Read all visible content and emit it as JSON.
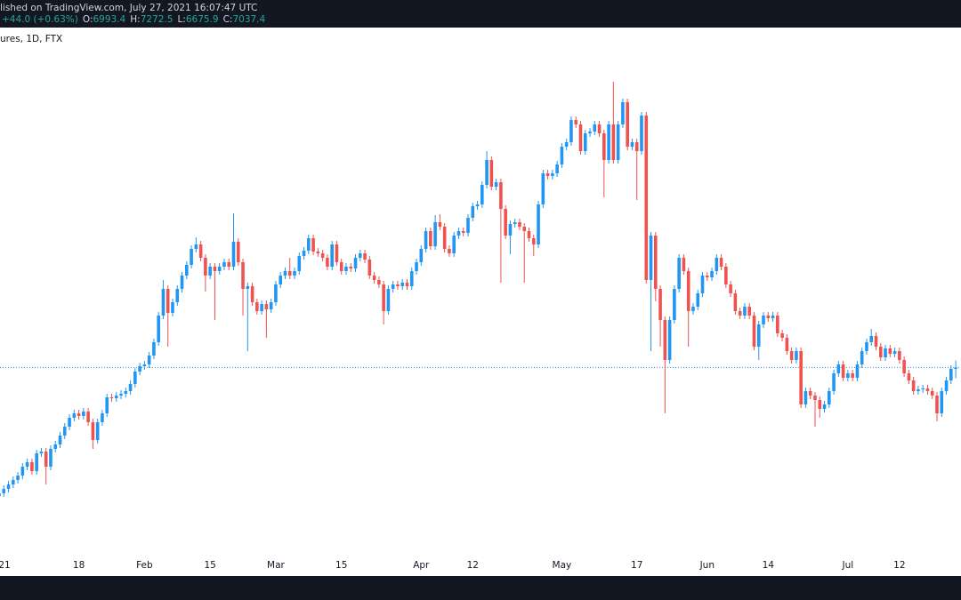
{
  "chart_data": {
    "type": "candlestick",
    "publish_note": "lished on TradingView.com, July 27, 2021 16:07:47 UTC",
    "change_label": "+44.0 (+0.63%)",
    "ohlc_labels": [
      "O:",
      "H:",
      "L:",
      "C:"
    ],
    "symbol": "ures, 1D, FTX",
    "up_color": "#2196f3",
    "down_color": "#ef5350",
    "ylim": [
      0,
      18540
    ],
    "categories": [
      "21",
      null,
      null,
      null,
      null,
      null,
      null,
      null,
      null,
      null,
      null,
      null,
      null,
      null,
      null,
      null,
      null,
      "18",
      null,
      null,
      null,
      null,
      null,
      null,
      null,
      null,
      null,
      null,
      null,
      null,
      null,
      "Feb",
      null,
      null,
      null,
      null,
      null,
      null,
      null,
      null,
      null,
      null,
      null,
      null,
      null,
      "15",
      null,
      null,
      null,
      null,
      null,
      null,
      null,
      null,
      null,
      null,
      null,
      null,
      null,
      "Mar",
      null,
      null,
      null,
      null,
      null,
      null,
      null,
      null,
      null,
      null,
      null,
      null,
      null,
      "15",
      null,
      null,
      null,
      null,
      null,
      null,
      null,
      null,
      null,
      null,
      null,
      null,
      null,
      null,
      null,
      null,
      "Apr",
      null,
      null,
      null,
      null,
      null,
      null,
      null,
      null,
      null,
      null,
      "12",
      null,
      null,
      null,
      null,
      null,
      null,
      null,
      null,
      null,
      null,
      null,
      null,
      null,
      null,
      null,
      null,
      null,
      null,
      "May",
      null,
      null,
      null,
      null,
      null,
      null,
      null,
      null,
      null,
      null,
      null,
      null,
      null,
      null,
      null,
      "17",
      null,
      null,
      null,
      null,
      null,
      null,
      null,
      null,
      null,
      null,
      null,
      null,
      null,
      null,
      "Jun",
      null,
      null,
      null,
      null,
      null,
      null,
      null,
      null,
      null,
      null,
      null,
      null,
      "14",
      null,
      null,
      null,
      null,
      null,
      null,
      null,
      null,
      null,
      null,
      null,
      null,
      null,
      null,
      null,
      null,
      "Jul",
      null,
      null,
      null,
      null,
      null,
      null,
      null,
      null,
      null,
      null,
      "12",
      null,
      null,
      null,
      null,
      null,
      null,
      null,
      null,
      null,
      null,
      null,
      null
    ],
    "open": [
      2700,
      2790,
      2940,
      3090,
      3240,
      3390,
      3690,
      3840,
      3540,
      4140,
      4200,
      3690,
      4290,
      4440,
      4740,
      5040,
      5340,
      5490,
      5400,
      5550,
      5190,
      4590,
      5190,
      5490,
      6030,
      6000,
      6090,
      6150,
      6240,
      6480,
      6900,
      7080,
      7140,
      7440,
      7890,
      8790,
      9690,
      8880,
      9240,
      9690,
      10140,
      10500,
      11040,
      11190,
      10740,
      10140,
      10440,
      10290,
      10440,
      10590,
      10440,
      11280,
      10590,
      9690,
      9780,
      9240,
      8940,
      9180,
      9000,
      9240,
      9840,
      10140,
      10290,
      10140,
      10290,
      10800,
      10980,
      11400,
      10950,
      10890,
      10740,
      10440,
      11190,
      10590,
      10290,
      10440,
      10380,
      10740,
      10890,
      10680,
      10140,
      9990,
      9840,
      8940,
      9690,
      9840,
      9780,
      9900,
      9780,
      10290,
      10590,
      11040,
      11640,
      11130,
      11940,
      11790,
      11040,
      10890,
      11490,
      11640,
      11580,
      12090,
      12480,
      12540,
      13200,
      14040,
      13140,
      13290,
      12390,
      11490,
      11880,
      11940,
      11790,
      11640,
      11400,
      11190,
      12540,
      13590,
      13500,
      13590,
      13890,
      14490,
      14640,
      15390,
      15240,
      14340,
      14940,
      15000,
      15240,
      14940,
      14040,
      15240,
      14040,
      15240,
      15990,
      14490,
      14640,
      14340,
      15540,
      9990,
      11490,
      9690,
      8640,
      7290,
      8640,
      9690,
      10740,
      10290,
      8940,
      9090,
      9540,
      10140,
      10080,
      10290,
      10740,
      10440,
      9840,
      9540,
      8940,
      8790,
      9090,
      8790,
      7740,
      8490,
      8790,
      8700,
      8790,
      8190,
      8040,
      7590,
      7290,
      7590,
      5790,
      6240,
      6090,
      5940,
      5640,
      5790,
      6240,
      6840,
      7140,
      6690,
      6840,
      6690,
      7140,
      7590,
      7890,
      8100,
      7740,
      7380,
      7680,
      7500,
      7590,
      7290,
      6840,
      6600,
      6240,
      6300,
      6330,
      6240,
      6090,
      5490,
      6240,
      6600,
      6993.4
    ],
    "high": [
      2910,
      3060,
      3210,
      3360,
      3510,
      3810,
      3960,
      3960,
      4260,
      4320,
      4320,
      4410,
      4560,
      4860,
      5160,
      5460,
      5610,
      5610,
      5670,
      5670,
      5310,
      5310,
      5610,
      6150,
      6150,
      6210,
      6270,
      6360,
      6600,
      7020,
      7200,
      7260,
      7560,
      8010,
      8910,
      9990,
      9810,
      9360,
      9810,
      10260,
      10620,
      11160,
      11430,
      11310,
      10860,
      10560,
      10560,
      10560,
      10710,
      10710,
      12240,
      11400,
      10710,
      9900,
      9900,
      9360,
      9300,
      9300,
      9360,
      9960,
      10260,
      10410,
      10740,
      10410,
      10920,
      11100,
      11520,
      11520,
      11070,
      11010,
      10860,
      11310,
      11310,
      10710,
      10560,
      10560,
      10860,
      11010,
      11010,
      10800,
      10260,
      10110,
      9960,
      9810,
      9960,
      9960,
      10020,
      10020,
      10410,
      10710,
      11160,
      11760,
      11760,
      12180,
      12210,
      11910,
      11160,
      11610,
      11760,
      11760,
      12210,
      12600,
      12660,
      13320,
      14340,
      14160,
      13410,
      13410,
      12510,
      12000,
      12060,
      12060,
      11910,
      11760,
      11520,
      12660,
      13710,
      13710,
      13710,
      14010,
      14610,
      14760,
      15510,
      15510,
      15360,
      15060,
      15120,
      15360,
      15360,
      15060,
      15360,
      16680,
      15360,
      16110,
      16110,
      14760,
      14760,
      15660,
      15660,
      11610,
      11610,
      9810,
      8760,
      8760,
      9810,
      10860,
      10860,
      10410,
      9210,
      9660,
      10260,
      10260,
      10410,
      10860,
      10860,
      10560,
      9960,
      9660,
      9060,
      9210,
      9210,
      8910,
      8610,
      8910,
      8910,
      8910,
      8910,
      8310,
      8160,
      7710,
      7710,
      7710,
      6360,
      6360,
      6210,
      6060,
      5910,
      6360,
      6960,
      7260,
      7260,
      6960,
      6960,
      7260,
      7710,
      8010,
      8340,
      8220,
      7860,
      7800,
      7800,
      7710,
      7710,
      7410,
      6960,
      6720,
      6420,
      6450,
      6450,
      6360,
      6210,
      6360,
      6720,
      7110,
      7272.5
    ],
    "low": [
      2580,
      2670,
      2820,
      2970,
      3120,
      3270,
      3570,
      3420,
      3420,
      4020,
      3090,
      3570,
      4170,
      4320,
      4620,
      4920,
      5220,
      5280,
      5280,
      5070,
      4290,
      4470,
      5070,
      5370,
      5880,
      5880,
      5970,
      6030,
      6120,
      6360,
      6780,
      6960,
      7020,
      7320,
      7770,
      8670,
      7740,
      8760,
      9120,
      9570,
      10020,
      10380,
      10920,
      10620,
      9600,
      10020,
      8640,
      10170,
      10320,
      10320,
      10320,
      10470,
      8790,
      7590,
      9120,
      8820,
      8820,
      8040,
      8880,
      9120,
      9720,
      10020,
      10020,
      10020,
      10170,
      10680,
      10860,
      10830,
      10770,
      10620,
      10320,
      10320,
      10470,
      10170,
      10170,
      10260,
      10260,
      10620,
      10560,
      10020,
      9870,
      9720,
      8490,
      8820,
      9570,
      9660,
      9660,
      9660,
      9660,
      10170,
      10470,
      10920,
      11010,
      11010,
      11670,
      10920,
      10770,
      10770,
      11370,
      11460,
      11460,
      11970,
      12360,
      12420,
      13080,
      13020,
      13020,
      9900,
      11370,
      10860,
      11760,
      11670,
      9900,
      11280,
      10800,
      11070,
      12420,
      13380,
      13380,
      13470,
      13770,
      14370,
      14520,
      15120,
      14220,
      14220,
      14820,
      14880,
      14820,
      12780,
      13920,
      13920,
      13920,
      15120,
      14370,
      14370,
      12690,
      14220,
      9870,
      7590,
      9270,
      7740,
      5490,
      7170,
      8520,
      9570,
      10170,
      7740,
      8820,
      8970,
      9420,
      9960,
      9960,
      10170,
      10320,
      9720,
      9420,
      8820,
      8670,
      8670,
      8670,
      7620,
      7290,
      8370,
      8580,
      8580,
      8070,
      7920,
      7470,
      7170,
      7170,
      5670,
      5670,
      5970,
      5040,
      5340,
      5520,
      5670,
      6120,
      6720,
      6570,
      6570,
      6570,
      6570,
      7020,
      7470,
      7770,
      7620,
      7260,
      7260,
      7380,
      7380,
      7170,
      6720,
      6480,
      6120,
      6120,
      6180,
      6120,
      5970,
      5220,
      5370,
      6120,
      6480,
      6675.9
    ],
    "close": [
      2790,
      2940,
      3090,
      3240,
      3390,
      3690,
      3840,
      3540,
      4140,
      4200,
      3690,
      4290,
      4440,
      4740,
      5040,
      5340,
      5490,
      5400,
      5550,
      5190,
      4590,
      5190,
      5490,
      6030,
      6000,
      6090,
      6150,
      6240,
      6480,
      6900,
      7080,
      7140,
      7440,
      7890,
      8790,
      9690,
      8880,
      9240,
      9690,
      10140,
      10500,
      11040,
      11190,
      10740,
      10140,
      10440,
      10290,
      10440,
      10590,
      10440,
      11280,
      10590,
      9690,
      9780,
      9240,
      8940,
      9180,
      9000,
      9240,
      9840,
      10140,
      10290,
      10140,
      10290,
      10800,
      10980,
      11400,
      10950,
      10890,
      10740,
      10440,
      11190,
      10590,
      10290,
      10440,
      10380,
      10740,
      10890,
      10680,
      10140,
      9990,
      9840,
      8940,
      9690,
      9840,
      9780,
      9900,
      9780,
      10290,
      10590,
      11040,
      11640,
      11130,
      11940,
      11790,
      11040,
      10890,
      11490,
      11640,
      11580,
      12090,
      12480,
      12540,
      13200,
      14040,
      13140,
      13290,
      12390,
      11490,
      11880,
      11940,
      11790,
      11640,
      11400,
      11190,
      12540,
      13590,
      13500,
      13590,
      13890,
      14490,
      14640,
      15390,
      15240,
      14340,
      14940,
      15000,
      15240,
      14940,
      14040,
      15240,
      14040,
      15240,
      15990,
      14490,
      14640,
      14340,
      15540,
      9990,
      11490,
      9690,
      8640,
      7290,
      8640,
      9690,
      10740,
      10290,
      8940,
      9090,
      9540,
      10140,
      10080,
      10290,
      10740,
      10440,
      9840,
      9540,
      8940,
      8790,
      9090,
      8790,
      7740,
      8490,
      8790,
      8700,
      8790,
      8190,
      8040,
      7590,
      7290,
      7590,
      5790,
      6240,
      6090,
      5940,
      5640,
      5790,
      6240,
      6840,
      7140,
      6690,
      6840,
      6690,
      7140,
      7590,
      7890,
      8100,
      7740,
      7380,
      7680,
      7500,
      7590,
      7290,
      6840,
      6600,
      6240,
      6300,
      6330,
      6240,
      6090,
      5490,
      6240,
      6600,
      6993.4,
      7037.4
    ]
  }
}
